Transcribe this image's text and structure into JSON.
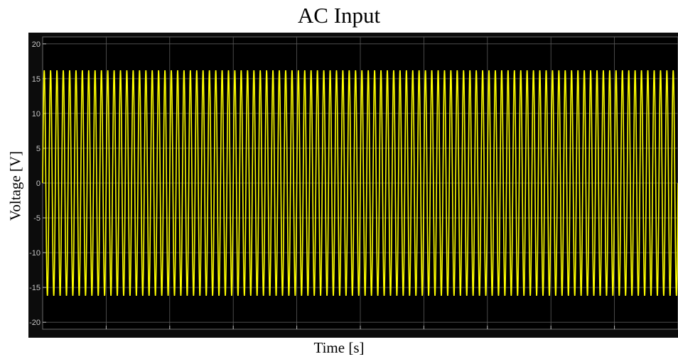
{
  "chart_data": {
    "type": "line",
    "title": "AC Input",
    "xlabel": "Time [s]",
    "ylabel": "Voltage [V]",
    "ylim": [
      -21,
      21
    ],
    "yticks": [
      20,
      15,
      10,
      5,
      0,
      -5,
      -10,
      -15,
      -20
    ],
    "ytick_labels": [
      "20",
      "15",
      "10",
      "5",
      "0",
      "-5",
      "-10",
      "-15",
      "-20"
    ],
    "x_tick_labels_visible": false,
    "grid": true,
    "series": [
      {
        "amplitude": 16.2,
        "visible_cycles": 100,
        "color": "#ffff00"
      }
    ]
  },
  "colors": {
    "plot_background": "#000000",
    "frame_background": "#0c0c0c",
    "grid": "#5a5a5a",
    "axis_text": "#c8c8c8",
    "signal": "#ffff00"
  }
}
